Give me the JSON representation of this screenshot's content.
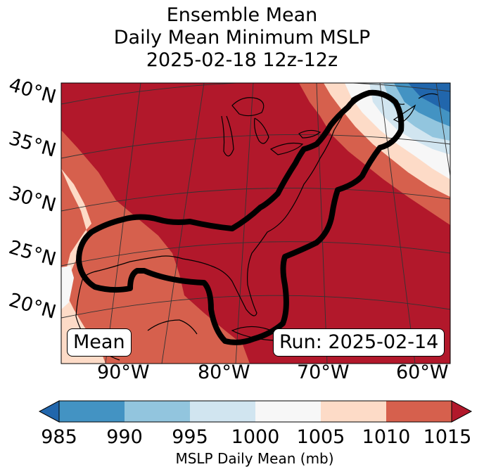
{
  "title": {
    "line1": "Ensemble Mean",
    "line2": "Daily Mean Minimum MSLP",
    "line3": "2025-02-18 12z-12z"
  },
  "map": {
    "lat_labels": [
      "40°N",
      "35°N",
      "30°N",
      "25°N",
      "20°N"
    ],
    "lon_labels": [
      "90°W",
      "80°W",
      "70°W",
      "60°W"
    ],
    "left_box": "Mean",
    "right_box": "Run: 2025-02-14"
  },
  "colorbar": {
    "label": "MSLP Daily Mean (mb)",
    "ticks": [
      "985",
      "990",
      "995",
      "1000",
      "1005",
      "1010",
      "1015"
    ],
    "colors": {
      "below": "#2166ac",
      "985-990": "#4393c3",
      "990-995": "#92c5de",
      "995-1000": "#d1e5f0",
      "1000-1005": "#f7f7f7",
      "1005-1010": "#fddbc7",
      "1010-1015": "#d6604d",
      "above": "#b2182b"
    }
  }
}
